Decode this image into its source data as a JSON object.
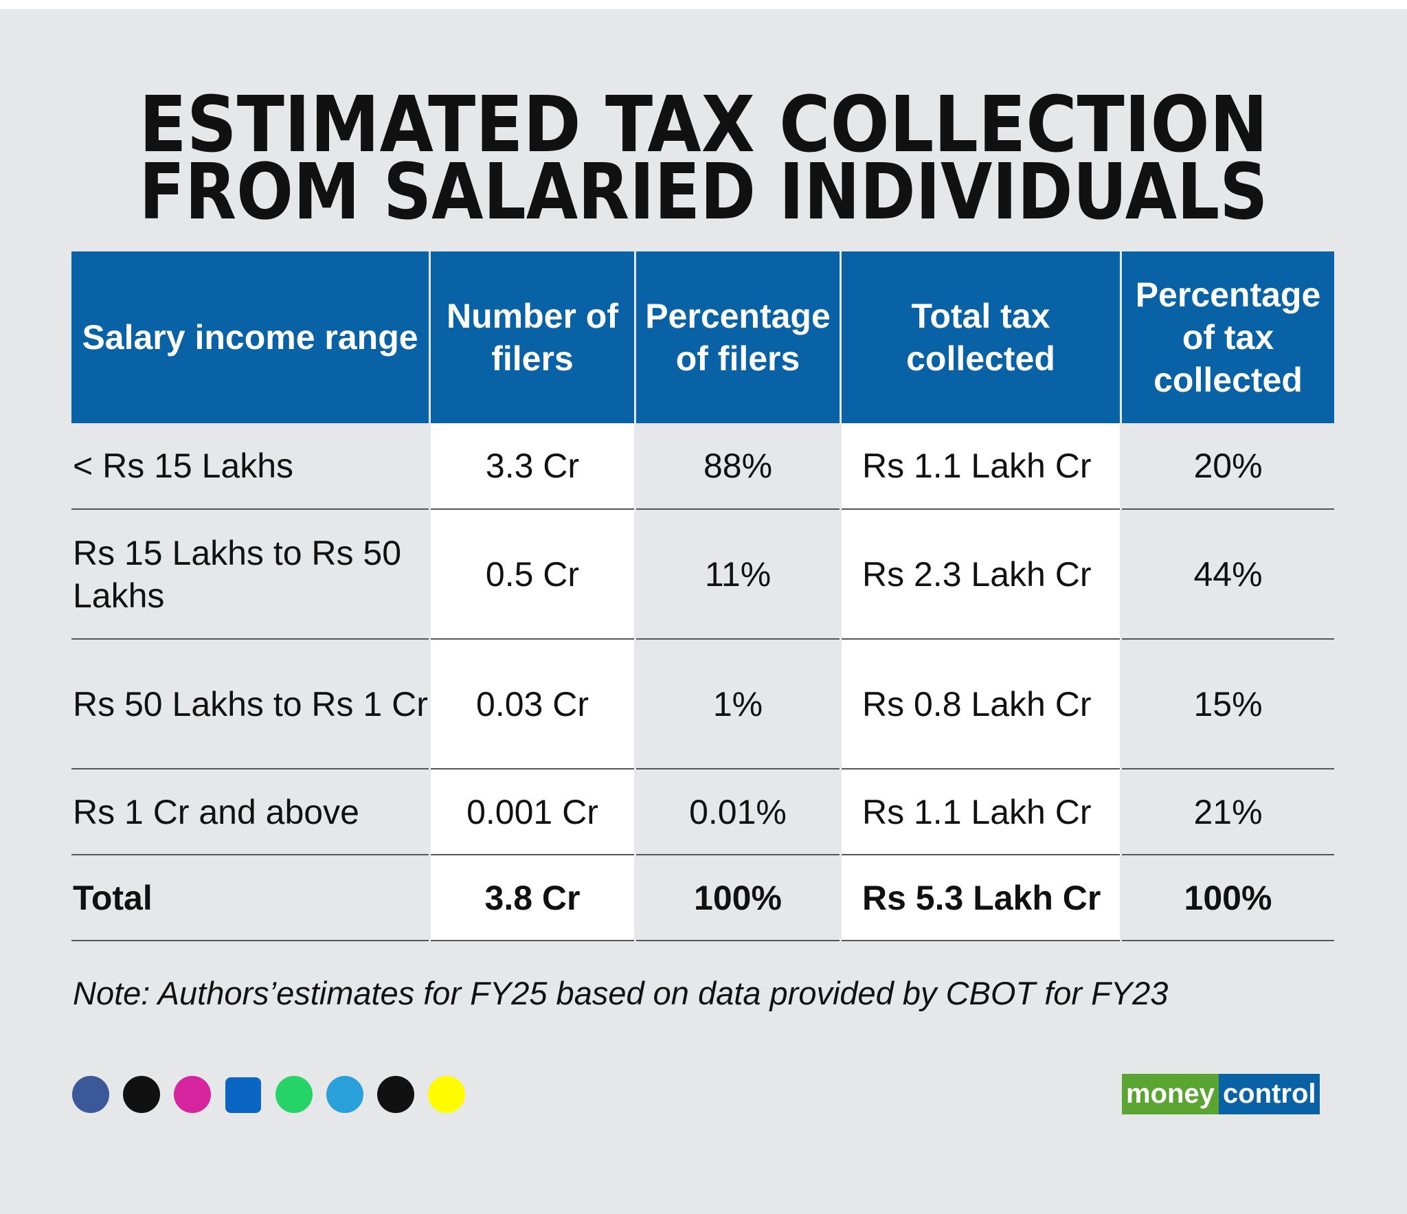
{
  "title": [
    "ESTIMATED TAX COLLECTION",
    "FROM SALARIED INDIVIDUALS"
  ],
  "table": {
    "header": [
      "Salary income range",
      "Number of filers",
      "Percentage of filers",
      "Total tax collected",
      "Percentage of tax collected"
    ],
    "rows": [
      [
        "< Rs 15 Lakhs",
        "3.3 Cr",
        "88%",
        "Rs 1.1 Lakh Cr",
        "20%"
      ],
      [
        "Rs 15 Lakhs to Rs 50 Lakhs",
        "0.5 Cr",
        "11%",
        "Rs 2.3 Lakh Cr",
        "44%"
      ],
      [
        "Rs 50 Lakhs to Rs 1 Cr",
        "0.03 Cr",
        "1%",
        "Rs 0.8 Lakh Cr",
        "15%"
      ],
      [
        "Rs 1 Cr and above",
        "0.001 Cr",
        "0.01%",
        "Rs 1.1 Lakh Cr",
        "21%"
      ],
      [
        "Total",
        "3.8 Cr",
        "100%",
        "Rs 5.3 Lakh Cr",
        "100%"
      ]
    ]
  },
  "note": "Note: Authors’estimates for FY25 based on data provided by CBOT for FY23",
  "logo": {
    "left": "money",
    "right": "control"
  }
}
